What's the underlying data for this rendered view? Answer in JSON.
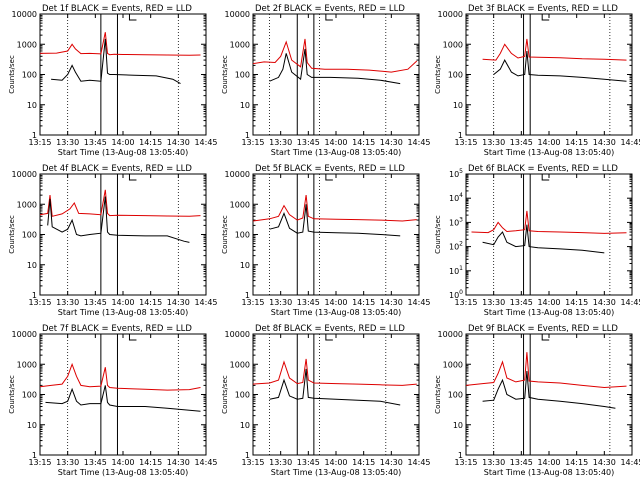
{
  "figure": {
    "layout": "3x3 grid of log-scale rate plots",
    "colors": {
      "events": "#000000",
      "lld": "#dd0000"
    }
  },
  "chart_data": [
    {
      "id": 1,
      "type": "line",
      "title": "Det 1f BLACK = Events, RED = LLD",
      "xlabel": "Start Time (13-Aug-08 13:05:40)",
      "ylabel": "Counts/sec",
      "x_ticks": [
        "13:15",
        "13:30",
        "13:45",
        "14:00",
        "14:15",
        "14:30",
        "14:45"
      ],
      "y_scale": "log",
      "y_ticks": [
        "1",
        "10",
        "100",
        "1000",
        "10000"
      ],
      "xlim": [
        13.25,
        14.75
      ],
      "ylim": [
        1,
        10000
      ],
      "markers": {
        "dotted": [
          13.5,
          14.5
        ],
        "solid": [
          13.8,
          13.95
        ]
      },
      "series": [
        {
          "name": "LLD",
          "color": "#dd0000",
          "x": [
            13.25,
            13.4,
            13.5,
            13.54,
            13.57,
            13.62,
            13.7,
            13.8,
            13.84,
            13.86,
            13.88,
            13.92,
            14.0,
            14.2,
            14.4,
            14.6,
            14.7
          ],
          "y": [
            500,
            510,
            600,
            1000,
            700,
            490,
            500,
            480,
            2500,
            500,
            450,
            470,
            460,
            450,
            440,
            430,
            440
          ]
        },
        {
          "name": "Events",
          "color": "#000000",
          "x": [
            13.35,
            13.45,
            13.5,
            13.54,
            13.57,
            13.62,
            13.7,
            13.8,
            13.84,
            13.86,
            13.88,
            13.92,
            14.1,
            14.3,
            14.45,
            14.52
          ],
          "y": [
            70,
            65,
            100,
            200,
            120,
            60,
            65,
            60,
            1500,
            110,
            100,
            100,
            95,
            90,
            70,
            50
          ]
        }
      ]
    },
    {
      "id": 2,
      "type": "line",
      "title": "Det 2f BLACK = Events, RED = LLD",
      "xlabel": "Start Time (13-Aug-08 13:05:40)",
      "ylabel": "Counts/sec",
      "x_ticks": [
        "13:15",
        "13:30",
        "13:45",
        "14:00",
        "14:15",
        "14:30",
        "14:45"
      ],
      "y_scale": "log",
      "y_ticks": [
        "1",
        "10",
        "100",
        "1000",
        "10000"
      ],
      "xlim": [
        13.25,
        14.75
      ],
      "ylim": [
        1,
        10000
      ],
      "markers": {
        "dotted": [
          13.4,
          13.85,
          14.45
        ],
        "solid": [
          13.65,
          13.8
        ]
      },
      "series": [
        {
          "name": "LLD",
          "color": "#dd0000",
          "x": [
            13.25,
            13.35,
            13.45,
            13.5,
            13.55,
            13.6,
            13.68,
            13.72,
            13.74,
            13.78,
            13.9,
            14.1,
            14.3,
            14.5,
            14.65,
            14.73
          ],
          "y": [
            230,
            260,
            250,
            400,
            1200,
            300,
            180,
            1500,
            250,
            160,
            150,
            150,
            140,
            120,
            150,
            280
          ]
        },
        {
          "name": "Events",
          "color": "#000000",
          "x": [
            13.4,
            13.48,
            13.52,
            13.55,
            13.6,
            13.68,
            13.72,
            13.74,
            13.78,
            13.95,
            14.2,
            14.4,
            14.58
          ],
          "y": [
            60,
            80,
            150,
            500,
            120,
            70,
            700,
            100,
            80,
            80,
            75,
            65,
            50
          ]
        }
      ]
    },
    {
      "id": 3,
      "type": "line",
      "title": "Det 3f BLACK = Events, RED = LLD",
      "xlabel": "Start Time (13-Aug-08 13:05:40)",
      "ylabel": "Counts/sec",
      "x_ticks": [
        "13:15",
        "13:30",
        "13:45",
        "14:00",
        "14:15",
        "14:30",
        "14:45"
      ],
      "y_scale": "log",
      "y_ticks": [
        "1",
        "10",
        "100",
        "1000",
        "10000"
      ],
      "xlim": [
        13.25,
        14.75
      ],
      "ylim": [
        1,
        10000
      ],
      "markers": {
        "dotted": [
          13.5,
          14.55
        ],
        "solid": [
          13.77,
          13.83
        ]
      },
      "series": [
        {
          "name": "LLD",
          "color": "#dd0000",
          "x": [
            13.4,
            13.52,
            13.56,
            13.6,
            13.66,
            13.72,
            13.78,
            13.8,
            13.82,
            13.9,
            14.1,
            14.3,
            14.5,
            14.7
          ],
          "y": [
            320,
            300,
            500,
            1000,
            500,
            350,
            400,
            1500,
            380,
            370,
            360,
            330,
            320,
            300
          ]
        },
        {
          "name": "Events",
          "color": "#000000",
          "x": [
            13.5,
            13.56,
            13.6,
            13.66,
            13.72,
            13.78,
            13.8,
            13.82,
            13.9,
            14.1,
            14.3,
            14.5,
            14.7
          ],
          "y": [
            100,
            150,
            300,
            120,
            90,
            100,
            600,
            100,
            95,
            90,
            80,
            70,
            60
          ]
        }
      ]
    },
    {
      "id": 4,
      "type": "line",
      "title": "Det 4f BLACK = Events, RED = LLD",
      "xlabel": "Start Time (13-Aug-08 13:05:40)",
      "ylabel": "Counts/sec",
      "x_ticks": [
        "13:15",
        "13:30",
        "13:45",
        "14:00",
        "14:15",
        "14:30",
        "14:45"
      ],
      "y_scale": "log",
      "y_ticks": [
        "1",
        "10",
        "100",
        "1000",
        "10000"
      ],
      "xlim": [
        13.25,
        14.75
      ],
      "ylim": [
        1,
        10000
      ],
      "markers": {
        "dotted": [
          13.5,
          14.5
        ],
        "solid": [
          13.8,
          13.95
        ]
      },
      "series": [
        {
          "name": "LLD",
          "color": "#dd0000",
          "x": [
            13.25,
            13.32,
            13.34,
            13.36,
            13.45,
            13.52,
            13.56,
            13.6,
            13.7,
            13.8,
            13.84,
            13.86,
            13.88,
            13.95,
            14.2,
            14.4,
            14.6,
            14.7
          ],
          "y": [
            450,
            500,
            2000,
            400,
            480,
            700,
            1100,
            500,
            480,
            450,
            3000,
            500,
            420,
            430,
            420,
            410,
            400,
            420
          ]
        },
        {
          "name": "Events",
          "color": "#000000",
          "x": [
            13.32,
            13.34,
            13.36,
            13.45,
            13.5,
            13.54,
            13.58,
            13.62,
            13.7,
            13.8,
            13.84,
            13.86,
            13.88,
            13.95,
            14.2,
            14.4,
            14.55,
            14.6
          ],
          "y": [
            200,
            1500,
            180,
            120,
            150,
            300,
            100,
            90,
            100,
            110,
            1800,
            120,
            100,
            95,
            90,
            90,
            60,
            55
          ]
        }
      ]
    },
    {
      "id": 5,
      "type": "line",
      "title": "Det 5f BLACK = Events, RED = LLD",
      "xlabel": "Start Time (13-Aug-08 13:05:40)",
      "ylabel": "Counts/sec",
      "x_ticks": [
        "13:15",
        "13:30",
        "13:45",
        "14:00",
        "14:15",
        "14:30",
        "14:45"
      ],
      "y_scale": "log",
      "y_ticks": [
        "1",
        "10",
        "100",
        "1000",
        "10000"
      ],
      "xlim": [
        13.25,
        14.75
      ],
      "ylim": [
        1,
        10000
      ],
      "markers": {
        "dotted": [
          13.4,
          13.85,
          14.45
        ],
        "solid": [
          13.65,
          13.8
        ]
      },
      "series": [
        {
          "name": "LLD",
          "color": "#dd0000",
          "x": [
            13.25,
            13.4,
            13.48,
            13.53,
            13.58,
            13.65,
            13.7,
            13.73,
            13.75,
            13.8,
            14.0,
            14.2,
            14.4,
            14.6,
            14.73
          ],
          "y": [
            280,
            330,
            400,
            900,
            450,
            300,
            350,
            2000,
            400,
            330,
            320,
            310,
            300,
            280,
            310
          ]
        },
        {
          "name": "Events",
          "color": "#000000",
          "x": [
            13.4,
            13.48,
            13.53,
            13.58,
            13.65,
            13.7,
            13.73,
            13.75,
            13.8,
            14.0,
            14.2,
            14.4,
            14.58
          ],
          "y": [
            150,
            180,
            500,
            160,
            110,
            120,
            1000,
            130,
            120,
            115,
            110,
            100,
            90
          ]
        }
      ]
    },
    {
      "id": 6,
      "type": "line",
      "title": "Det 6f BLACK = Events, RED = LLD",
      "xlabel": "Start Time (13-Aug-08 13:05:40)",
      "ylabel": "Counts/sec",
      "x_ticks": [
        "13:15",
        "13:30",
        "13:45",
        "14:00",
        "14:15",
        "14:30",
        "14:45"
      ],
      "y_scale": "log",
      "y_ticks": [
        "10^0",
        "10^1",
        "10^2",
        "10^3",
        "10^4",
        "10^5"
      ],
      "xlim": [
        13.25,
        14.75
      ],
      "ylim": [
        1,
        100000
      ],
      "markers": {
        "dotted": [
          13.5,
          14.55
        ],
        "solid": [
          13.77,
          13.83
        ]
      },
      "series": [
        {
          "name": "LLD",
          "color": "#dd0000",
          "x": [
            13.3,
            13.45,
            13.5,
            13.54,
            13.58,
            13.62,
            13.7,
            13.78,
            13.8,
            13.82,
            13.9,
            14.1,
            14.3,
            14.5,
            14.7
          ],
          "y": [
            400,
            380,
            500,
            1000,
            600,
            420,
            450,
            500,
            3000,
            450,
            420,
            400,
            380,
            350,
            370
          ]
        },
        {
          "name": "Events",
          "color": "#000000",
          "x": [
            13.4,
            13.5,
            13.54,
            13.58,
            13.62,
            13.7,
            13.78,
            13.8,
            13.82,
            13.9,
            14.1,
            14.3,
            14.5
          ],
          "y": [
            150,
            120,
            250,
            400,
            150,
            100,
            110,
            800,
            100,
            90,
            80,
            70,
            55
          ]
        }
      ]
    },
    {
      "id": 7,
      "type": "line",
      "title": "Det 7f BLACK = Events, RED = LLD",
      "xlabel": "Start Time (13-Aug-08 13:05:40)",
      "ylabel": "Counts/sec",
      "x_ticks": [
        "13:15",
        "13:30",
        "13:45",
        "14:00",
        "14:15",
        "14:30",
        "14:45"
      ],
      "y_scale": "log",
      "y_ticks": [
        "1",
        "10",
        "100",
        "1000",
        "10000"
      ],
      "xlim": [
        13.25,
        14.75
      ],
      "ylim": [
        1,
        10000
      ],
      "markers": {
        "dotted": [
          13.5,
          14.5
        ],
        "solid": [
          13.8,
          13.95
        ]
      },
      "series": [
        {
          "name": "LLD",
          "color": "#dd0000",
          "x": [
            13.25,
            13.35,
            13.45,
            13.5,
            13.54,
            13.58,
            13.62,
            13.7,
            13.8,
            13.84,
            13.86,
            13.88,
            13.95,
            14.2,
            14.4,
            14.6,
            14.7
          ],
          "y": [
            180,
            200,
            220,
            400,
            1000,
            400,
            200,
            180,
            190,
            800,
            200,
            170,
            160,
            150,
            140,
            145,
            170
          ]
        },
        {
          "name": "Events",
          "color": "#000000",
          "x": [
            13.3,
            13.45,
            13.5,
            13.54,
            13.58,
            13.62,
            13.7,
            13.8,
            13.84,
            13.86,
            13.88,
            13.95,
            14.2,
            14.4,
            14.6,
            14.7
          ],
          "y": [
            55,
            50,
            60,
            150,
            60,
            45,
            50,
            50,
            200,
            55,
            45,
            40,
            40,
            35,
            30,
            28
          ]
        }
      ]
    },
    {
      "id": 8,
      "type": "line",
      "title": "Det 8f BLACK = Events, RED = LLD",
      "xlabel": "Start Time (13-Aug-08 13:05:40)",
      "ylabel": "Counts/sec",
      "x_ticks": [
        "13:15",
        "13:30",
        "13:45",
        "14:00",
        "14:15",
        "14:30",
        "14:45"
      ],
      "y_scale": "log",
      "y_ticks": [
        "1",
        "10",
        "100",
        "1000",
        "10000"
      ],
      "xlim": [
        13.25,
        14.75
      ],
      "ylim": [
        1,
        10000
      ],
      "markers": {
        "dotted": [
          13.4,
          13.85,
          14.45
        ],
        "solid": [
          13.65,
          13.8
        ]
      },
      "series": [
        {
          "name": "LLD",
          "color": "#dd0000",
          "x": [
            13.25,
            13.4,
            13.48,
            13.53,
            13.58,
            13.65,
            13.7,
            13.73,
            13.75,
            13.8,
            14.0,
            14.2,
            14.4,
            14.6,
            14.73
          ],
          "y": [
            220,
            240,
            300,
            1200,
            350,
            230,
            250,
            1500,
            300,
            240,
            230,
            220,
            210,
            200,
            220
          ]
        },
        {
          "name": "Events",
          "color": "#000000",
          "x": [
            13.4,
            13.48,
            13.53,
            13.58,
            13.65,
            13.7,
            13.73,
            13.75,
            13.8,
            14.0,
            14.2,
            14.4,
            14.58
          ],
          "y": [
            70,
            80,
            300,
            90,
            70,
            75,
            700,
            80,
            75,
            70,
            65,
            60,
            45
          ]
        }
      ]
    },
    {
      "id": 9,
      "type": "line",
      "title": "Det 9f BLACK = Events, RED = LLD",
      "xlabel": "Start Time (13-Aug-08 13:05:40)",
      "ylabel": "Counts/sec",
      "x_ticks": [
        "13:15",
        "13:30",
        "13:45",
        "14:00",
        "14:15",
        "14:30",
        "14:45"
      ],
      "y_scale": "log",
      "y_ticks": [
        "1",
        "10",
        "100",
        "1000",
        "10000"
      ],
      "xlim": [
        13.25,
        14.75
      ],
      "ylim": [
        1,
        10000
      ],
      "markers": {
        "dotted": [
          13.5,
          14.55
        ],
        "solid": [
          13.77,
          13.83
        ]
      },
      "series": [
        {
          "name": "LLD",
          "color": "#dd0000",
          "x": [
            13.25,
            13.4,
            13.5,
            13.54,
            13.58,
            13.62,
            13.7,
            13.78,
            13.8,
            13.82,
            13.9,
            14.1,
            14.3,
            14.5,
            14.7
          ],
          "y": [
            200,
            230,
            250,
            500,
            1200,
            350,
            260,
            300,
            2500,
            280,
            260,
            240,
            200,
            170,
            190
          ]
        },
        {
          "name": "Events",
          "color": "#000000",
          "x": [
            13.4,
            13.5,
            13.54,
            13.58,
            13.62,
            13.7,
            13.78,
            13.8,
            13.82,
            13.9,
            14.1,
            14.3,
            14.5,
            14.6
          ],
          "y": [
            60,
            65,
            150,
            300,
            100,
            70,
            75,
            600,
            80,
            70,
            60,
            50,
            40,
            35
          ]
        }
      ]
    }
  ]
}
